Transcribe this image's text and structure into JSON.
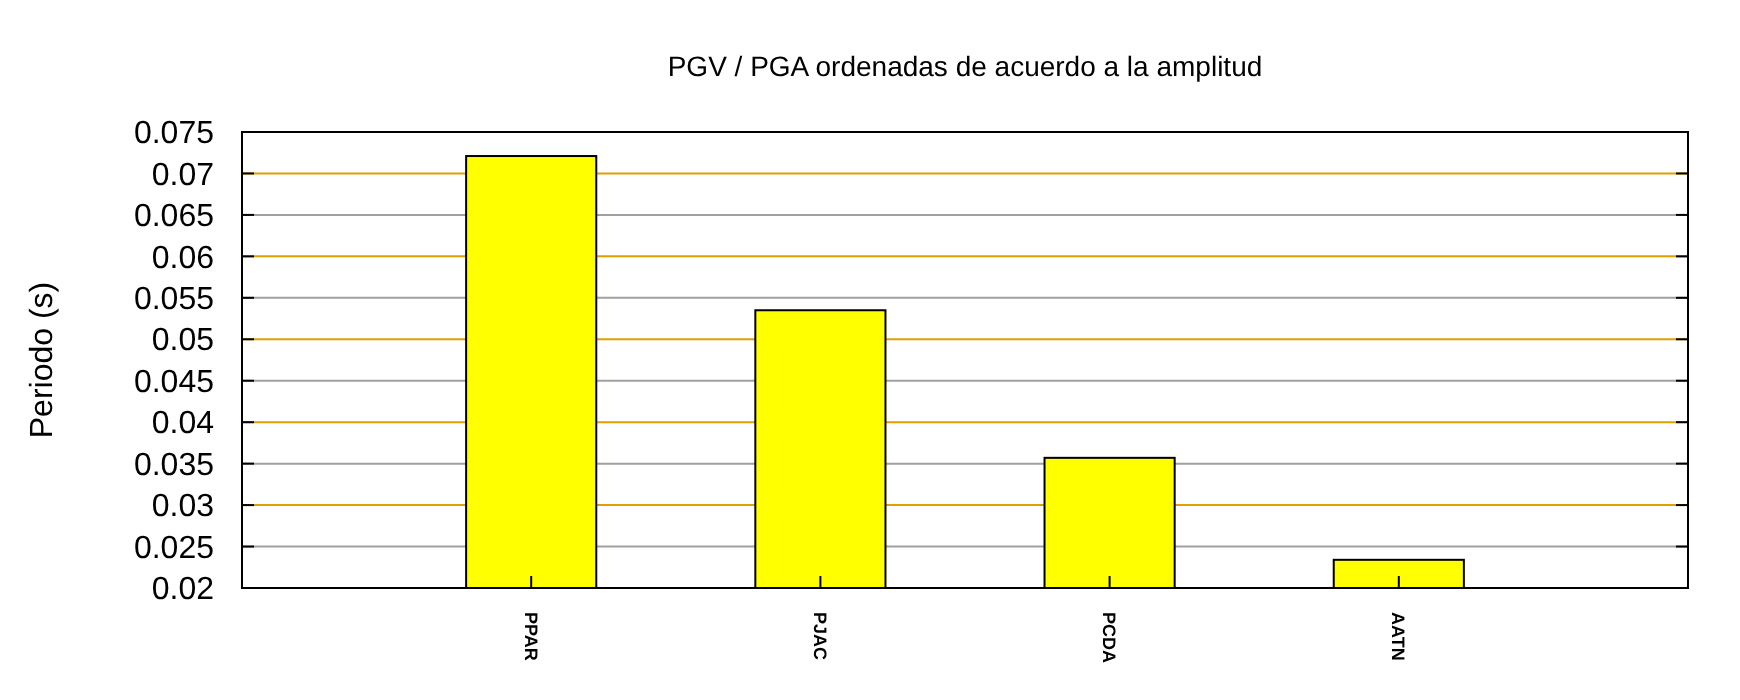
{
  "chart_data": {
    "type": "bar",
    "title": "PGV / PGA ordenadas de acuerdo a la amplitud",
    "ylabel": "Periodo (s)",
    "categories": [
      "PPAR",
      "PJAC",
      "PCDA",
      "AATN"
    ],
    "values": [
      0.0721,
      0.0535,
      0.0357,
      0.0234
    ],
    "color": "#ffff00",
    "ylim": [
      0.02,
      0.075
    ],
    "yticks": [
      0.02,
      0.025,
      0.03,
      0.035,
      0.04,
      0.045,
      0.05,
      0.055,
      0.06,
      0.065,
      0.07,
      0.075
    ],
    "grid": true
  }
}
